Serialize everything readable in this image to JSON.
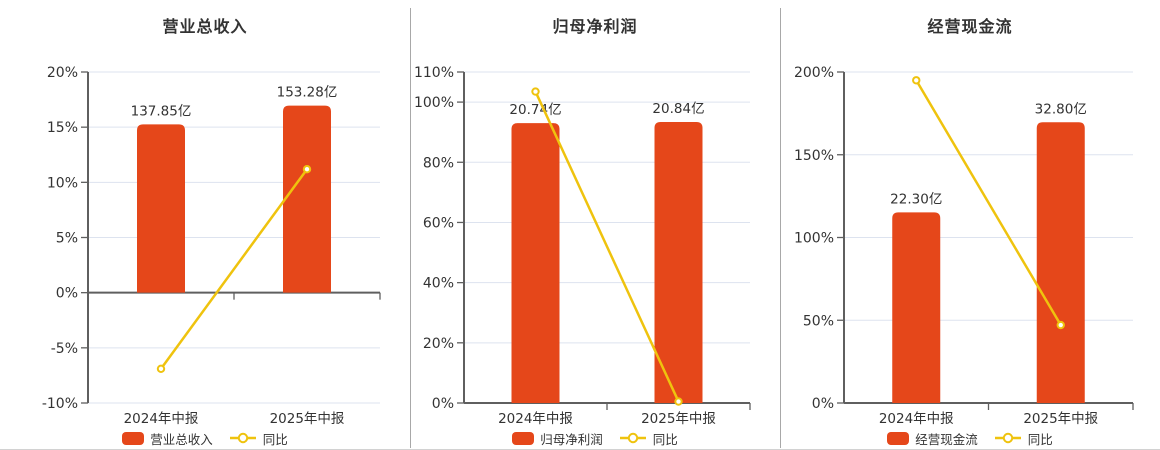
{
  "page": {
    "background": "#ffffff"
  },
  "colors": {
    "bar": "#e5471a",
    "line": "#efc30e",
    "text": "#333333",
    "grid": "#dde3ef",
    "axis": "#5f5f5f",
    "divider": "#a8a8a8",
    "bottom_border": "#d2d2d2"
  },
  "chart_data": [
    {
      "type": "bar",
      "title": "营业总收入",
      "categories": [
        "2024年中报",
        "2025年中报"
      ],
      "bar_series": {
        "name": "营业总收入",
        "unit": "亿",
        "values": [
          137.85,
          153.28
        ],
        "labels": [
          "137.85亿",
          "153.28亿"
        ],
        "top_pct_on_axis": [
          15.25,
          16.95
        ]
      },
      "line_series": {
        "name": "同比",
        "values_pct": [
          -6.9,
          11.19
        ]
      },
      "y_axis": {
        "min": -10,
        "max": 20,
        "ticks": [
          -10,
          -5,
          0,
          5,
          10,
          15,
          20
        ],
        "tick_labels": [
          "-10%",
          "-5%",
          "0%",
          "5%",
          "10%",
          "15%",
          "20%"
        ],
        "grid": true
      },
      "legend": [
        "营业总收入",
        "同比"
      ],
      "legend_position": "bottom"
    },
    {
      "type": "bar",
      "title": "归母净利润",
      "categories": [
        "2024年中报",
        "2025年中报"
      ],
      "bar_series": {
        "name": "归母净利润",
        "unit": "亿",
        "values": [
          20.74,
          20.84
        ],
        "labels": [
          "20.74亿",
          "20.84亿"
        ],
        "top_pct_on_axis": [
          93.0,
          93.4
        ]
      },
      "line_series": {
        "name": "同比",
        "values_pct": [
          103.5,
          0.48
        ]
      },
      "y_axis": {
        "min": 0,
        "max": 110,
        "ticks": [
          0,
          20,
          40,
          60,
          80,
          100,
          110
        ],
        "tick_labels": [
          "0%",
          "20%",
          "40%",
          "60%",
          "80%",
          "100%",
          "110%"
        ],
        "grid": true
      },
      "legend": [
        "归母净利润",
        "同比"
      ],
      "legend_position": "bottom"
    },
    {
      "type": "bar",
      "title": "经营现金流",
      "categories": [
        "2024年中报",
        "2025年中报"
      ],
      "bar_series": {
        "name": "经营现金流",
        "unit": "亿",
        "values": [
          22.3,
          32.8
        ],
        "labels": [
          "22.30亿",
          "32.80亿"
        ],
        "top_pct_on_axis": [
          115.2,
          169.6
        ]
      },
      "line_series": {
        "name": "同比",
        "values_pct": [
          195.0,
          47.1
        ]
      },
      "y_axis": {
        "min": 0,
        "max": 200,
        "ticks": [
          0,
          50,
          100,
          150,
          200
        ],
        "tick_labels": [
          "0%",
          "50%",
          "100%",
          "150%",
          "200%"
        ],
        "grid": true
      },
      "legend": [
        "经营现金流",
        "同比"
      ],
      "legend_position": "bottom"
    }
  ]
}
